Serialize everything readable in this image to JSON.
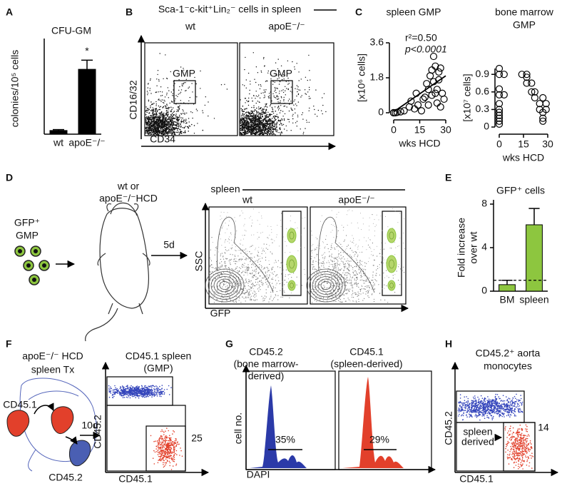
{
  "figure": {
    "panel_labels": [
      "A",
      "B",
      "C",
      "D",
      "E",
      "F",
      "G",
      "H"
    ],
    "B": {
      "title": "Sca-1⁻c-kit⁺Lin₂⁻ cells in spleen",
      "plots": [
        "wt",
        "apoE⁻/⁻"
      ],
      "gates": [
        "GMP",
        "GMP"
      ],
      "y_label": "CD16/32",
      "x_label": "CD34"
    },
    "D": {
      "cells": [
        "GFP⁺",
        "GMP"
      ],
      "treatment": [
        "wt or",
        "apoE⁻/⁻HCD"
      ],
      "time": "5d",
      "tissue": "spleen",
      "plots": [
        "wt",
        "apoE⁻/⁻"
      ],
      "y_label": "SSC",
      "x_label": "GFP"
    },
    "F": {
      "donor": [
        "apoE⁻/⁻ HCD",
        "spleen Tx"
      ],
      "donor_cells": "CD45.1",
      "host": "CD45.2",
      "time": "10d",
      "plot_title": [
        "CD45.1 spleen",
        "(GMP)"
      ],
      "y_label": "CD45.2",
      "x_label": "CD45.1",
      "gate_value": 25
    },
    "G": {
      "plot_titles": [
        [
          "CD45.2",
          "(bone marrow-",
          "derived)"
        ],
        [
          "CD45.1",
          "(spleen-derived)"
        ]
      ],
      "y_label": "cell no.",
      "x_label": "DAPI",
      "percents": [
        "35%",
        "29%"
      ]
    },
    "H": {
      "title": [
        "CD45.2⁺ aorta",
        "monocytes"
      ],
      "y_label": "CD45.2",
      "x_label": "CD45.1",
      "gate_label": [
        "spleen",
        "derived"
      ],
      "gate_value": 14
    }
  },
  "chart_data": [
    {
      "type": "bar",
      "title": "CFU-GM",
      "y_label": "colonies/10⁵ cells",
      "categories": [
        "wt",
        "apoE⁻/⁻"
      ],
      "values": [
        4,
        71
      ],
      "errors": [
        1,
        10
      ],
      "color": "#000000",
      "ylim": [
        0,
        100
      ],
      "annotation": "*"
    },
    {
      "type": "scatter",
      "title": [
        "spleen GMP"
      ],
      "y_label": "[x10⁶ cells]",
      "x_label": "wks HCD",
      "x": [
        0,
        0,
        0,
        0,
        1,
        2,
        4,
        6,
        9,
        10,
        12,
        13,
        14,
        16,
        17,
        18,
        19,
        20,
        20,
        21,
        22,
        22,
        23,
        23,
        24,
        24,
        25,
        25,
        26,
        26,
        27,
        27,
        28,
        29
      ],
      "values": [
        0,
        0,
        0,
        0,
        0,
        0.02,
        0.05,
        0.1,
        0.3,
        0.6,
        0.2,
        1.0,
        0.4,
        0.1,
        0.7,
        0.8,
        1.5,
        1.2,
        0.4,
        1.9,
        0.9,
        2.2,
        1.6,
        2.9,
        2.4,
        1.0,
        1.2,
        0.5,
        2.1,
        1.7,
        0.3,
        2.3,
        1.0,
        0.7
      ],
      "xlim": [
        0,
        30
      ],
      "ylim": [
        0,
        3.6
      ],
      "xticks": [
        0,
        15,
        30
      ],
      "yticks": [
        0,
        1.8,
        3.6
      ],
      "annotations": [
        "r²=0.50",
        "p<0.0001"
      ],
      "color": "#000000",
      "trend_line": {
        "x": [
          0,
          30
        ],
        "y": [
          0.05,
          1.9
        ]
      }
    },
    {
      "type": "scatter",
      "title": [
        "bone marrow",
        "GMP"
      ],
      "y_label": "[x10⁷ cells]",
      "x_label": "wks HCD",
      "x": [
        0,
        0,
        0,
        0,
        0,
        0,
        0,
        0,
        0,
        0,
        0,
        3,
        3,
        14,
        17,
        17,
        17,
        20,
        20,
        22,
        22,
        25,
        25,
        27,
        27,
        27,
        27,
        29,
        29
      ],
      "values": [
        1.0,
        0.9,
        0.65,
        0.55,
        0.4,
        0.3,
        0.25,
        0.2,
        0.15,
        0.1,
        0.05,
        0.9,
        0.55,
        0.9,
        0.9,
        0.85,
        0.75,
        0.75,
        0.6,
        0.5,
        0.6,
        0.4,
        0.3,
        0.15,
        0.25,
        0.5,
        0.1,
        0.3,
        0.4
      ],
      "xlim": [
        0,
        30
      ],
      "ylim": [
        0,
        1.0
      ],
      "xticks": [
        0,
        15,
        30
      ],
      "yticks": [
        0,
        0.3,
        0.6,
        0.9
      ],
      "color": "#000000"
    },
    {
      "type": "bar",
      "title": "GFP⁺ cells",
      "y_label": [
        "Fold increase",
        "over wt"
      ],
      "categories": [
        "BM",
        "spleen"
      ],
      "values": [
        0.6,
        6.1
      ],
      "errors": [
        0.4,
        1.5
      ],
      "color": "#8dc63f",
      "ylim": [
        0,
        8
      ],
      "yticks": [
        0,
        4,
        8
      ],
      "reference": 1
    }
  ]
}
